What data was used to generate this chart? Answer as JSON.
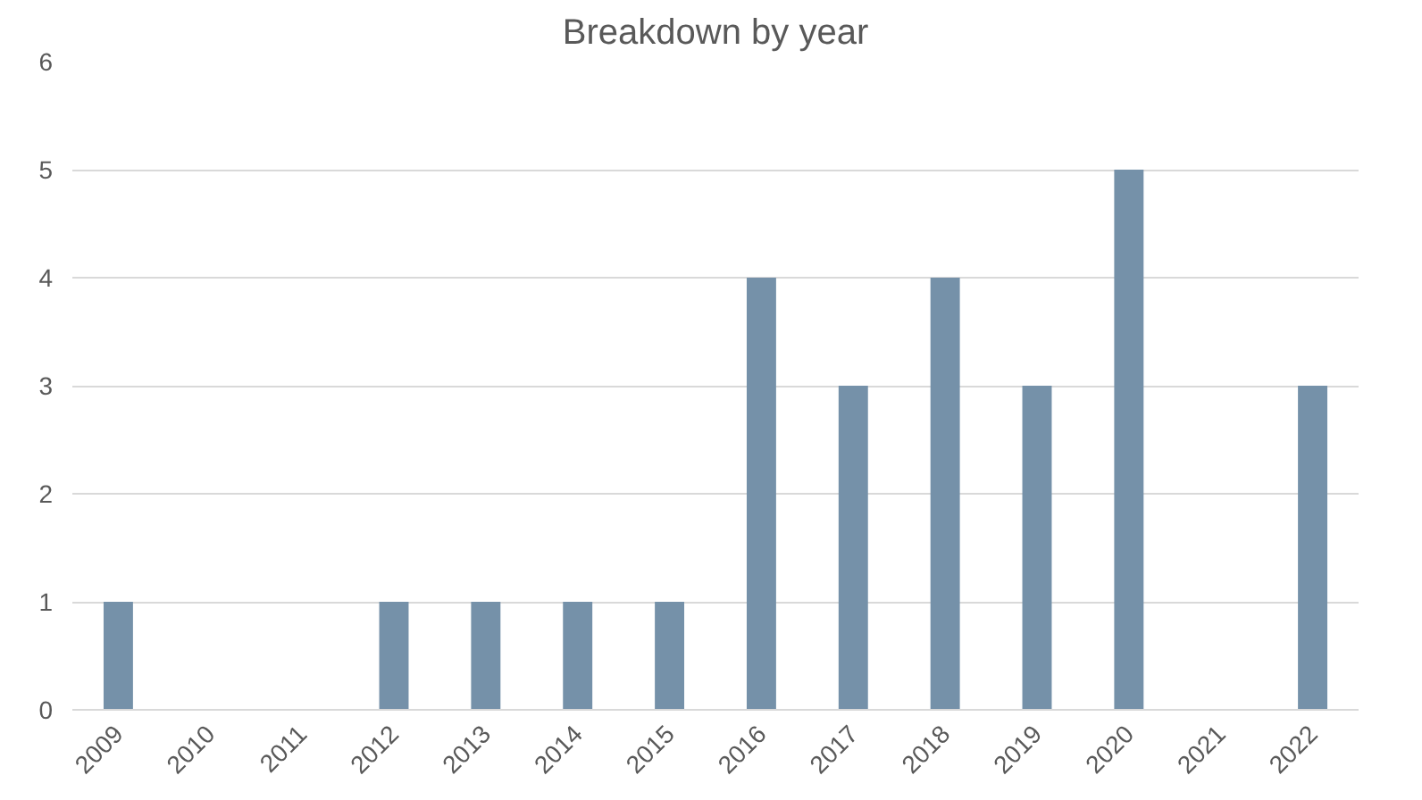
{
  "chart_data": {
    "type": "bar",
    "title": "Breakdown by year",
    "categories": [
      "2009",
      "2010",
      "2011",
      "2012",
      "2013",
      "2014",
      "2015",
      "2016",
      "2017",
      "2018",
      "2019",
      "2020",
      "2021",
      "2022"
    ],
    "values": [
      1,
      0,
      0,
      1,
      1,
      1,
      1,
      4,
      3,
      4,
      3,
      5,
      0,
      3
    ],
    "color": "#7591a9",
    "ylim": [
      0,
      6
    ],
    "yticks": [
      0,
      1,
      2,
      3,
      4,
      5,
      6
    ],
    "grid": "y"
  }
}
